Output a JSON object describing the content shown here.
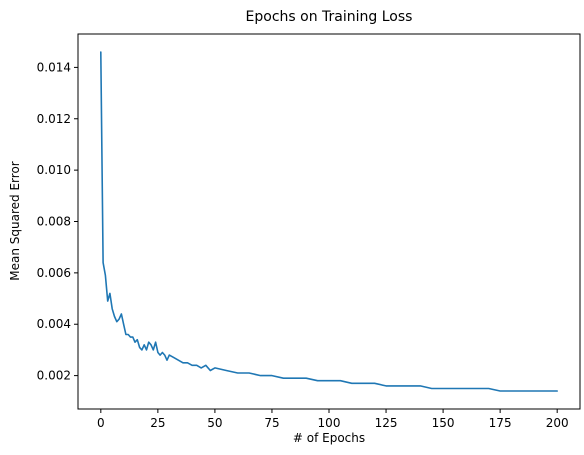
{
  "chart_data": {
    "type": "line",
    "title": "Epochs on Training Loss",
    "xlabel": "# of Epochs",
    "ylabel": "Mean Squared Error",
    "xlim": [
      -10,
      210
    ],
    "ylim": [
      0.0007,
      0.0153
    ],
    "xticks": [
      0,
      25,
      50,
      75,
      100,
      125,
      150,
      175,
      200
    ],
    "xtick_labels": [
      "0",
      "25",
      "50",
      "75",
      "100",
      "125",
      "150",
      "175",
      "200"
    ],
    "yticks": [
      0.002,
      0.004,
      0.006,
      0.008,
      0.01,
      0.012,
      0.014
    ],
    "ytick_labels": [
      "0.002",
      "0.004",
      "0.006",
      "0.008",
      "0.010",
      "0.012",
      "0.014"
    ],
    "grid": false,
    "line_color": "#1f77b4",
    "series": [
      {
        "x": [
          0,
          1,
          2,
          3,
          4,
          5,
          6,
          7,
          8,
          9,
          10,
          11,
          12,
          13,
          14,
          15,
          16,
          17,
          18,
          19,
          20,
          21,
          22,
          23,
          24,
          25,
          26,
          27,
          28,
          29,
          30,
          32,
          34,
          36,
          38,
          40,
          42,
          44,
          46,
          48,
          50,
          55,
          60,
          65,
          70,
          75,
          80,
          85,
          90,
          95,
          100,
          105,
          110,
          115,
          120,
          125,
          130,
          135,
          140,
          145,
          150,
          155,
          160,
          165,
          170,
          175,
          180,
          185,
          190,
          195,
          200
        ],
        "values": [
          0.0146,
          0.0064,
          0.0059,
          0.0049,
          0.0052,
          0.0046,
          0.0043,
          0.0041,
          0.0042,
          0.0044,
          0.004,
          0.0036,
          0.0036,
          0.0035,
          0.0035,
          0.0033,
          0.0034,
          0.0031,
          0.003,
          0.0032,
          0.003,
          0.0033,
          0.0032,
          0.003,
          0.0033,
          0.0029,
          0.0028,
          0.0029,
          0.0028,
          0.0026,
          0.0028,
          0.0027,
          0.0026,
          0.0025,
          0.0025,
          0.0024,
          0.0024,
          0.0023,
          0.0024,
          0.0022,
          0.0023,
          0.0022,
          0.0021,
          0.0021,
          0.002,
          0.002,
          0.0019,
          0.0019,
          0.0019,
          0.0018,
          0.0018,
          0.0018,
          0.0017,
          0.0017,
          0.0017,
          0.0016,
          0.0016,
          0.0016,
          0.0016,
          0.0015,
          0.0015,
          0.0015,
          0.0015,
          0.0015,
          0.0015,
          0.0014,
          0.0014,
          0.0014,
          0.0014,
          0.0014,
          0.0014
        ]
      }
    ]
  }
}
